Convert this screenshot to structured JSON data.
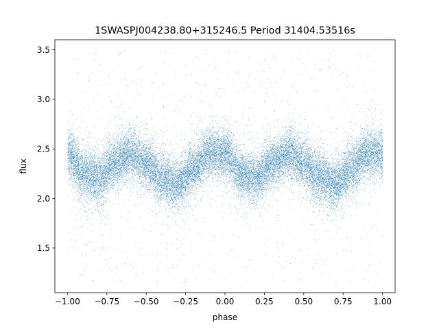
{
  "chart_data": {
    "type": "scatter",
    "title": "1SWASPJ004238.80+315246.5 Period 31404.53516s",
    "xlabel": "phase",
    "ylabel": "flux",
    "xlim": [
      -1.08,
      1.08
    ],
    "ylim": [
      1.05,
      3.6
    ],
    "xticks": [
      -1.0,
      -0.75,
      -0.5,
      -0.25,
      0.0,
      0.25,
      0.5,
      0.75,
      1.0
    ],
    "xtick_labels": [
      "−1.00",
      "−0.75",
      "−0.50",
      "−0.25",
      "0.00",
      "0.25",
      "0.50",
      "0.75",
      "1.00"
    ],
    "yticks": [
      1.5,
      2.0,
      2.5,
      3.0,
      3.5
    ],
    "ytick_labels": [
      "1.5",
      "2.0",
      "2.5",
      "3.0",
      "3.5"
    ],
    "grid": false,
    "marker_color": "#1f77b4",
    "series": [
      {
        "x_range": [
          -1.0,
          1.0
        ],
        "model": "light curve (phase-folded, mirrored)",
        "n_points_approx": 40000,
        "profile": {
          "phase": [
            -1.0,
            -0.9,
            -0.8,
            -0.7,
            -0.6,
            -0.5,
            -0.4,
            -0.3,
            -0.2,
            -0.1,
            0.0,
            0.1,
            0.2,
            0.3,
            0.4,
            0.5,
            0.6,
            0.7,
            0.8,
            0.9,
            1.0
          ],
          "flux": [
            2.45,
            2.25,
            2.2,
            2.37,
            2.45,
            2.35,
            2.2,
            2.15,
            2.3,
            2.45,
            2.45,
            2.25,
            2.2,
            2.37,
            2.45,
            2.35,
            2.2,
            2.15,
            2.3,
            2.45,
            2.45
          ]
        },
        "scatter_sigma": 0.12,
        "outlier_range": [
          1.15,
          3.5
        ]
      }
    ]
  }
}
